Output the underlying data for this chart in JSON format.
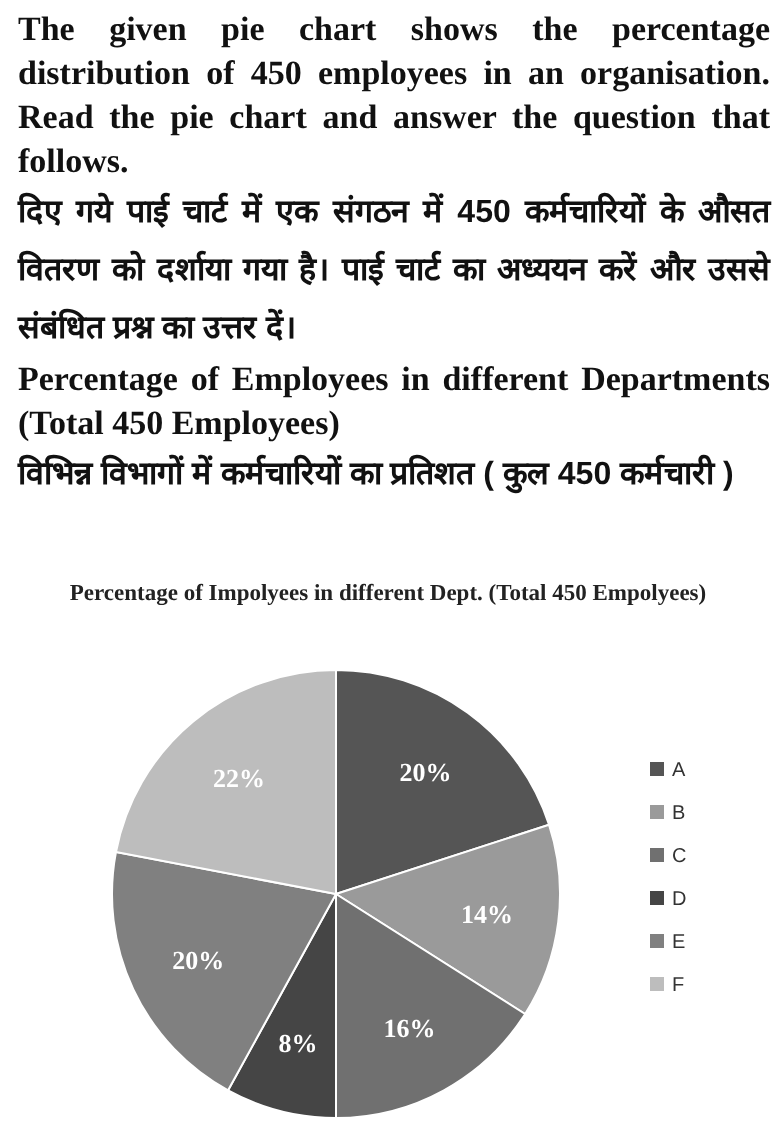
{
  "chart_data": {
    "type": "pie",
    "annotations": [
      "The given pie chart shows the percentage distribution of 450 employees in an organisation. Read the pie chart and answer the question that follows.",
      "दिए गये पाई चार्ट में एक संगठन में 450 कर्मचारियों के औसत वितरण को दर्शाया गया है। पाई चार्ट का अध्ययन करें और उससे संबंधित प्रश्न का उत्तर दें।",
      "Percentage of Employees in different Departments (Total 450 Employees)",
      "विभिन्न विभागों में कर्मचारियों का प्रतिशत ( कुल 450 कर्मचारी )"
    ],
    "title": "Percentage of Impolyees in different Dept. (Total 450 Empolyees)",
    "categories": [
      "A",
      "B",
      "C",
      "D",
      "E",
      "F"
    ],
    "values": [
      20,
      14,
      16,
      8,
      20,
      22
    ],
    "value_labels": [
      "20%",
      "14%",
      "16%",
      "8%",
      "20%",
      "22%"
    ],
    "colors": [
      "#555555",
      "#9a9a9a",
      "#707070",
      "#454545",
      "#808080",
      "#bdbdbd"
    ],
    "legend": "right"
  }
}
